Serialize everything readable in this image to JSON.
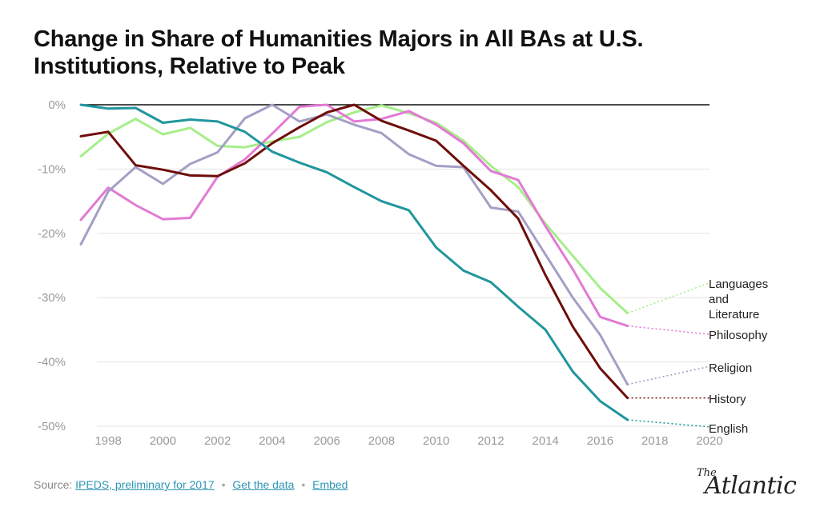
{
  "title": "Change in Share of Humanities Majors in All BAs at U.S. Institutions, Relative to Peak",
  "footer": {
    "source_label": "Source:",
    "source_link": "IPEDS, preliminary for 2017",
    "separator": "•",
    "data_link": "Get the data",
    "embed_link": "Embed"
  },
  "logo": {
    "the": "The",
    "name": "Atlantic"
  },
  "chart_data": {
    "type": "line",
    "title": "Change in Share of Humanities Majors in All BAs at U.S. Institutions, Relative to Peak",
    "xlabel": "",
    "ylabel": "",
    "xlim": [
      1997,
      2020
    ],
    "ylim": [
      -50,
      0
    ],
    "x_ticks": [
      1998,
      2000,
      2002,
      2004,
      2006,
      2008,
      2010,
      2012,
      2014,
      2016,
      2018,
      2020
    ],
    "y_ticks": [
      0,
      -10,
      -20,
      -30,
      -40,
      -50
    ],
    "y_tick_labels": [
      "0%",
      "-10%",
      "-20%",
      "-30%",
      "-40%",
      "-50%"
    ],
    "grid": "horizontal",
    "zero_line": true,
    "x": [
      1997,
      1998,
      1999,
      2000,
      2001,
      2002,
      2003,
      2004,
      2005,
      2006,
      2007,
      2008,
      2009,
      2010,
      2011,
      2012,
      2013,
      2014,
      2015,
      2016,
      2017
    ],
    "series": [
      {
        "name": "Languages and Literature",
        "label_lines": [
          "Languages",
          "and",
          "Literature"
        ],
        "color": "#a6ee8a",
        "values": [
          -8.0,
          -4.5,
          -2.2,
          -4.6,
          -3.6,
          -6.4,
          -6.6,
          -5.7,
          -5.0,
          -2.7,
          -1.2,
          -0.1,
          -1.3,
          -2.8,
          -5.6,
          -9.5,
          -12.8,
          -18.5,
          -23.5,
          -28.5,
          -32.4
        ],
        "projection": {
          "x": 2020,
          "value": -27.7
        }
      },
      {
        "name": "Philosophy",
        "label_lines": [
          "Philosophy"
        ],
        "color": "#e27ad4",
        "values": [
          -17.9,
          -12.9,
          -15.6,
          -17.8,
          -17.6,
          -11.2,
          -8.5,
          -4.5,
          -0.3,
          0.0,
          -2.6,
          -2.2,
          -1.0,
          -3.1,
          -6.0,
          -10.3,
          -11.7,
          -18.9,
          -25.6,
          -33.0,
          -34.4
        ],
        "projection": {
          "x": 2020,
          "value": -35.7
        }
      },
      {
        "name": "Religion",
        "label_lines": [
          "Religion"
        ],
        "color": "#a49fc4",
        "values": [
          -21.7,
          -13.5,
          -9.7,
          -12.3,
          -9.2,
          -7.4,
          -2.1,
          0.0,
          -2.6,
          -1.5,
          -3.1,
          -4.4,
          -7.7,
          -9.5,
          -9.7,
          -16.0,
          -16.6,
          -23.3,
          -30.0,
          -35.8,
          -43.5
        ],
        "projection": {
          "x": 2020,
          "value": -40.7
        }
      },
      {
        "name": "History",
        "label_lines": [
          "History"
        ],
        "color": "#6e0e0a",
        "values": [
          -4.9,
          -4.2,
          -9.4,
          -10.1,
          -11.0,
          -11.1,
          -9.1,
          -6.0,
          -3.5,
          -1.2,
          0.0,
          -2.5,
          -4.0,
          -5.6,
          -9.5,
          -13.3,
          -17.7,
          -26.5,
          -34.5,
          -41.0,
          -45.6
        ],
        "projection": {
          "x": 2020,
          "value": -45.6
        }
      },
      {
        "name": "English",
        "label_lines": [
          "English"
        ],
        "color": "#20969c",
        "values": [
          0.0,
          -0.6,
          -0.5,
          -2.8,
          -2.3,
          -2.6,
          -4.2,
          -7.3,
          -9.0,
          -10.5,
          -12.8,
          -15.0,
          -16.4,
          -22.2,
          -25.8,
          -27.6,
          -31.4,
          -35.0,
          -41.5,
          -46.1,
          -49.0
        ],
        "projection": {
          "x": 2020,
          "value": -50.1
        }
      }
    ]
  }
}
